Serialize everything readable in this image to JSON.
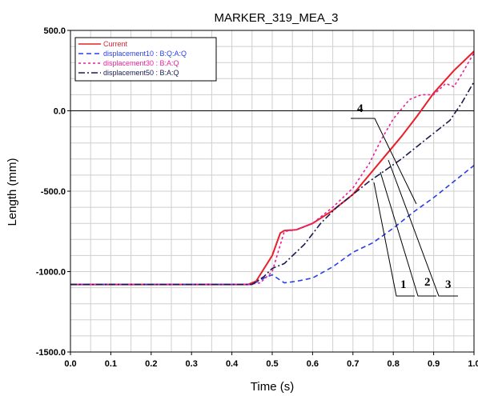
{
  "chart_data": {
    "type": "line",
    "title": "MARKER_319_MEA_3",
    "xlabel": "Time (s)",
    "ylabel": "Length (mm)",
    "xlim": [
      0.0,
      1.0
    ],
    "ylim": [
      -1500.0,
      500.0
    ],
    "x_ticks": [
      "0.0",
      "0.1",
      "0.2",
      "0.3",
      "0.4",
      "0.5",
      "0.6",
      "0.7",
      "0.8",
      "0.9",
      "1.0"
    ],
    "y_ticks": [
      "500.0",
      "0.0",
      "-500.0",
      "-1000.0",
      "-1500.0"
    ],
    "grid": true,
    "legend_position": "top-left",
    "series": [
      {
        "name": "Current",
        "color": "#e8202a",
        "dash": "solid",
        "x": [
          0.0,
          0.44,
          0.46,
          0.48,
          0.5,
          0.52,
          0.53,
          0.56,
          0.6,
          0.65,
          0.7,
          0.74,
          0.78,
          0.82,
          0.86,
          0.9,
          0.95,
          1.0
        ],
        "y": [
          -1080,
          -1080,
          -1060,
          -980,
          -900,
          -760,
          -745,
          -740,
          -700,
          -620,
          -520,
          -400,
          -280,
          -160,
          -30,
          110,
          250,
          370
        ]
      },
      {
        "name": "displacement10 : B:Q:A:Q",
        "color": "#2a3ee8",
        "dash": "6,4",
        "x": [
          0.0,
          0.45,
          0.48,
          0.5,
          0.53,
          0.56,
          0.6,
          0.65,
          0.7,
          0.75,
          0.8,
          0.85,
          0.9,
          0.95,
          1.0
        ],
        "y": [
          -1080,
          -1080,
          -1040,
          -1020,
          -1070,
          -1060,
          -1040,
          -970,
          -880,
          -820,
          -730,
          -630,
          -540,
          -440,
          -340
        ]
      },
      {
        "name": "displacement30 : B:A:Q",
        "color": "#e8209a",
        "dash": "3,3",
        "x": [
          0.0,
          0.44,
          0.47,
          0.5,
          0.53,
          0.56,
          0.6,
          0.65,
          0.7,
          0.74,
          0.77,
          0.8,
          0.84,
          0.87,
          0.9,
          0.93,
          0.95,
          0.97,
          1.0
        ],
        "y": [
          -1080,
          -1080,
          -1070,
          -1000,
          -750,
          -740,
          -700,
          -600,
          -480,
          -330,
          -180,
          -50,
          70,
          100,
          100,
          170,
          150,
          230,
          360
        ]
      },
      {
        "name": "displacement50 : B:A:Q",
        "color": "#1a1a50",
        "dash": "8,3,2,3",
        "x": [
          0.0,
          0.45,
          0.48,
          0.5,
          0.53,
          0.58,
          0.62,
          0.66,
          0.7,
          0.74,
          0.78,
          0.82,
          0.86,
          0.9,
          0.94,
          0.97,
          1.0
        ],
        "y": [
          -1080,
          -1080,
          -1030,
          -980,
          -950,
          -830,
          -700,
          -600,
          -520,
          -440,
          -370,
          -300,
          -220,
          -140,
          -60,
          50,
          180
        ]
      }
    ],
    "annotations": [
      "1",
      "2",
      "3",
      "4"
    ]
  }
}
